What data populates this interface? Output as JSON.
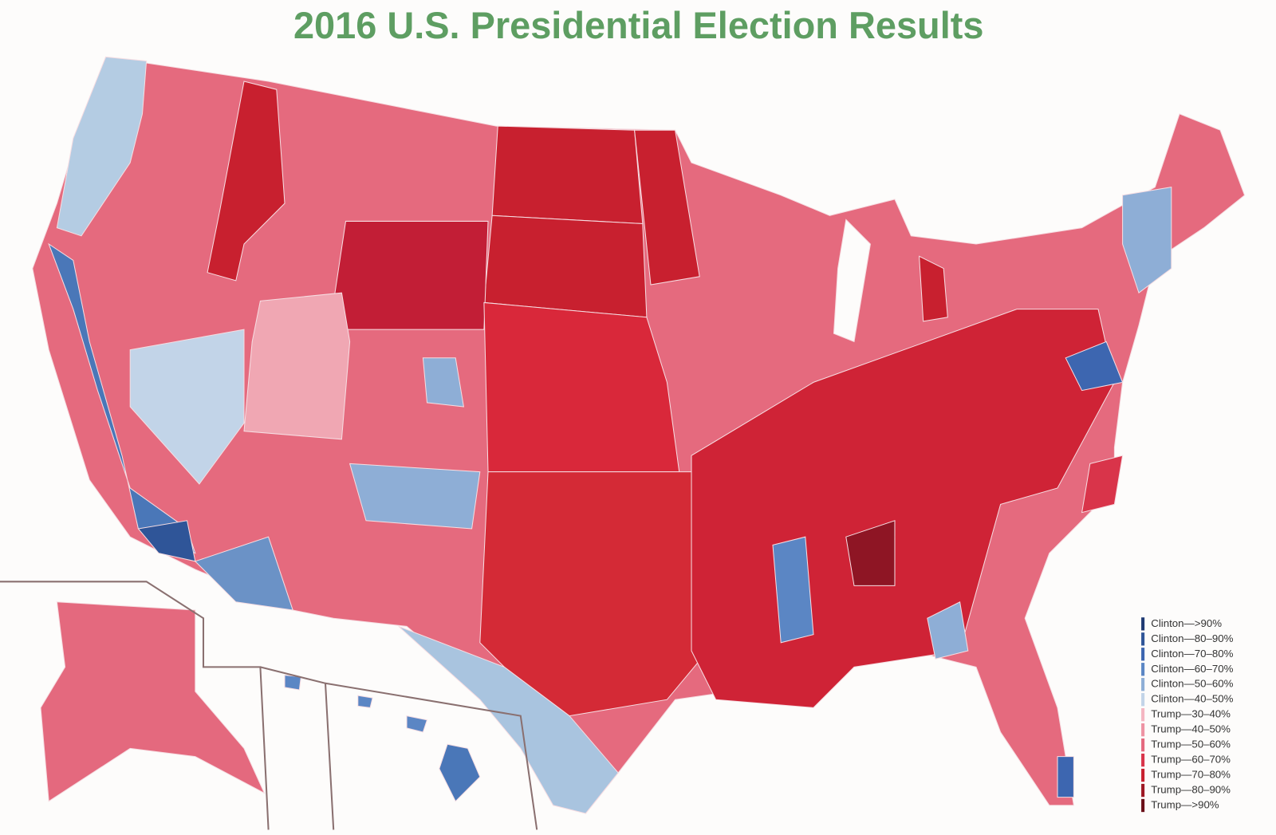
{
  "title": "2016 U.S. Presidential Election Results",
  "legend": {
    "items": [
      {
        "label": "Clinton—>90%",
        "color": "#1f3a73"
      },
      {
        "label": "Clinton—80–90%",
        "color": "#2f5598"
      },
      {
        "label": "Clinton—70–80%",
        "color": "#3d66b0"
      },
      {
        "label": "Clinton—60–70%",
        "color": "#5b86c4"
      },
      {
        "label": "Clinton—50–60%",
        "color": "#8eaed6"
      },
      {
        "label": "Clinton—40–50%",
        "color": "#c2d4e8"
      },
      {
        "label": "Trump—30–40%",
        "color": "#f4b6c1"
      },
      {
        "label": "Trump—40–50%",
        "color": "#ee93a3"
      },
      {
        "label": "Trump—50–60%",
        "color": "#e4697e"
      },
      {
        "label": "Trump—60–70%",
        "color": "#d9344a"
      },
      {
        "label": "Trump—70–80%",
        "color": "#c8202f"
      },
      {
        "label": "Trump—80–90%",
        "color": "#9e1824"
      },
      {
        "label": "Trump—>90%",
        "color": "#6b0f18"
      }
    ]
  }
}
